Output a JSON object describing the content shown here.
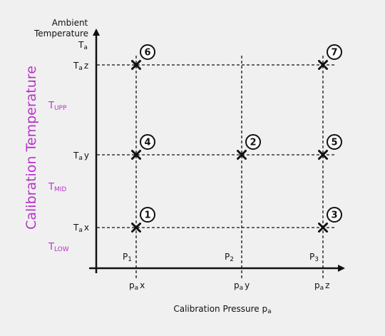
{
  "y_axis": {
    "title_line1": "Ambient",
    "title_line2": "Temperature",
    "symbol": "T",
    "symbol_sub": "a",
    "ticks": [
      {
        "main": "T",
        "sub": "a",
        "suffix": "z"
      },
      {
        "main": "T",
        "sub": "a",
        "suffix": "y"
      },
      {
        "main": "T",
        "sub": "a",
        "suffix": "x"
      }
    ]
  },
  "x_axis": {
    "title_main": "Calibration Pressure p",
    "title_sub": "a",
    "ticks": [
      {
        "main": "p",
        "sub": "a",
        "suffix": "x"
      },
      {
        "main": "p",
        "sub": "a",
        "suffix": "y"
      },
      {
        "main": "p",
        "sub": "a",
        "suffix": "z"
      }
    ],
    "pressure_labels": [
      {
        "main": "P",
        "sub": "1"
      },
      {
        "main": "P",
        "sub": "2"
      },
      {
        "main": "P",
        "sub": "3"
      }
    ]
  },
  "side_title": "Calibration Temperature",
  "temperature_bands": [
    {
      "main": "T",
      "sub": "UPP"
    },
    {
      "main": "T",
      "sub": "MID"
    },
    {
      "main": "T",
      "sub": "LOW"
    }
  ],
  "points": [
    {
      "label": "1",
      "pressure": "x",
      "temperature": "x"
    },
    {
      "label": "2",
      "pressure": "y",
      "temperature": "y"
    },
    {
      "label": "3",
      "pressure": "z",
      "temperature": "x"
    },
    {
      "label": "4",
      "pressure": "x",
      "temperature": "y"
    },
    {
      "label": "5",
      "pressure": "z",
      "temperature": "y"
    },
    {
      "label": "6",
      "pressure": "x",
      "temperature": "z"
    },
    {
      "label": "7",
      "pressure": "z",
      "temperature": "z"
    }
  ],
  "colors": {
    "accent": "#b833c9",
    "ink": "#111111",
    "background": "#f0f0f0"
  }
}
